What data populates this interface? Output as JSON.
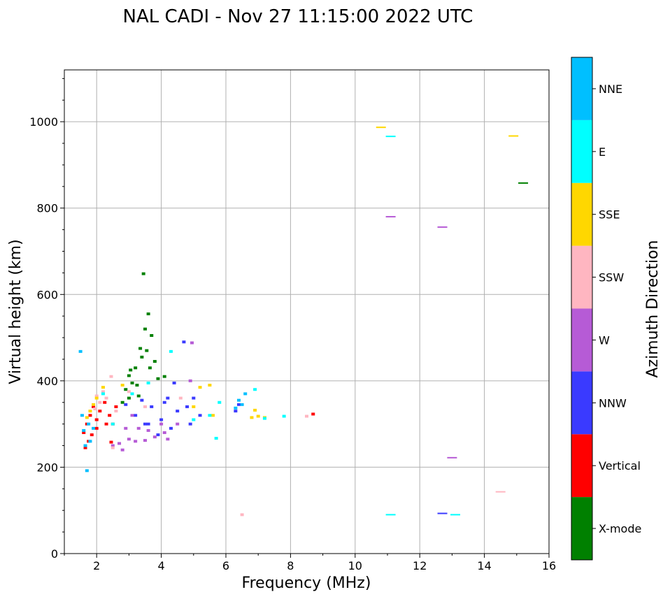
{
  "chart_data": {
    "type": "scatter",
    "title": "NAL CADI - Nov 27 11:15:00 2022 UTC",
    "xlabel": "Frequency (MHz)",
    "ylabel": "Virtual height (km)",
    "xlim": [
      1,
      16
    ],
    "ylim": [
      0,
      1120
    ],
    "xticks": [
      2,
      4,
      6,
      8,
      10,
      12,
      14,
      16
    ],
    "yticks": [
      0,
      200,
      400,
      600,
      800,
      1000
    ],
    "grid": true,
    "colorbar": {
      "label": "Azimuth Direction",
      "categories": [
        {
          "name": "X-mode",
          "color": "#008000"
        },
        {
          "name": "Vertical",
          "color": "#ff0000"
        },
        {
          "name": "NNW",
          "color": "#3a3aff"
        },
        {
          "name": "W",
          "color": "#b65bd6"
        },
        {
          "name": "SSW",
          "color": "#ffb6c1"
        },
        {
          "name": "SSE",
          "color": "#ffd700"
        },
        {
          "name": "E",
          "color": "#00ffff"
        },
        {
          "name": "NNE",
          "color": "#00bfff"
        }
      ]
    },
    "series": [
      {
        "name": "X-mode",
        "points": [
          [
            3.45,
            648
          ],
          [
            3.6,
            555
          ],
          [
            3.2,
            430
          ],
          [
            3.0,
            412
          ],
          [
            3.35,
            475
          ],
          [
            3.1,
            395
          ],
          [
            2.9,
            380
          ],
          [
            3.5,
            520
          ],
          [
            3.7,
            505
          ],
          [
            3.3,
            365
          ],
          [
            3.8,
            445
          ],
          [
            3.9,
            405
          ],
          [
            4.1,
            410
          ],
          [
            3.05,
            425
          ],
          [
            3.25,
            390
          ],
          [
            3.55,
            470
          ],
          [
            3.0,
            360
          ],
          [
            2.8,
            350
          ],
          [
            3.4,
            455
          ],
          [
            3.65,
            430
          ],
          [
            15.2,
            858
          ]
        ]
      },
      {
        "name": "Vertical",
        "points": [
          [
            1.6,
            280
          ],
          [
            1.7,
            300
          ],
          [
            1.8,
            320
          ],
          [
            1.9,
            340
          ],
          [
            2.0,
            310
          ],
          [
            2.1,
            330
          ],
          [
            1.75,
            260
          ],
          [
            2.25,
            350
          ],
          [
            2.4,
            320
          ],
          [
            2.5,
            300
          ],
          [
            1.65,
            245
          ],
          [
            2.45,
            258
          ],
          [
            2.0,
            290
          ],
          [
            2.6,
            340
          ],
          [
            2.3,
            300
          ],
          [
            1.85,
            275
          ],
          [
            8.7,
            323
          ]
        ]
      },
      {
        "name": "NNW",
        "points": [
          [
            3.2,
            320
          ],
          [
            3.5,
            300
          ],
          [
            4.0,
            310
          ],
          [
            4.5,
            330
          ],
          [
            4.7,
            490
          ],
          [
            5.0,
            360
          ],
          [
            5.2,
            320
          ],
          [
            4.8,
            340
          ],
          [
            4.3,
            290
          ],
          [
            3.9,
            275
          ],
          [
            4.2,
            360
          ],
          [
            4.4,
            395
          ],
          [
            3.7,
            340
          ],
          [
            3.4,
            355
          ],
          [
            3.6,
            300
          ],
          [
            2.9,
            345
          ],
          [
            4.1,
            350
          ],
          [
            4.9,
            300
          ],
          [
            6.4,
            345
          ],
          [
            6.3,
            330
          ],
          [
            12.7,
            93
          ]
        ]
      },
      {
        "name": "W",
        "points": [
          [
            2.7,
            255
          ],
          [
            3.0,
            265
          ],
          [
            3.2,
            260
          ],
          [
            3.5,
            262
          ],
          [
            3.8,
            270
          ],
          [
            4.2,
            265
          ],
          [
            4.1,
            280
          ],
          [
            3.6,
            285
          ],
          [
            2.8,
            240
          ],
          [
            2.5,
            250
          ],
          [
            3.3,
            290
          ],
          [
            4.0,
            300
          ],
          [
            4.5,
            300
          ],
          [
            4.9,
            400
          ],
          [
            4.95,
            488
          ],
          [
            3.1,
            320
          ],
          [
            2.9,
            290
          ],
          [
            11.1,
            780
          ],
          [
            12.7,
            756
          ],
          [
            13.0,
            222
          ]
        ]
      },
      {
        "name": "SSW",
        "points": [
          [
            2.3,
            360
          ],
          [
            2.2,
            375
          ],
          [
            2.5,
            245
          ],
          [
            2.6,
            330
          ],
          [
            2.45,
            410
          ],
          [
            2.1,
            350
          ],
          [
            2.0,
            365
          ],
          [
            1.95,
            335
          ],
          [
            3.0,
            375
          ],
          [
            3.5,
            340
          ],
          [
            4.6,
            360
          ],
          [
            6.5,
            90
          ],
          [
            8.5,
            318
          ],
          [
            14.5,
            143
          ]
        ]
      },
      {
        "name": "SSE",
        "points": [
          [
            1.7,
            315
          ],
          [
            1.8,
            330
          ],
          [
            1.9,
            345
          ],
          [
            2.0,
            360
          ],
          [
            2.2,
            385
          ],
          [
            2.8,
            390
          ],
          [
            5.2,
            385
          ],
          [
            5.5,
            390
          ],
          [
            6.8,
            315
          ],
          [
            7.0,
            318
          ],
          [
            7.2,
            315
          ],
          [
            6.9,
            332
          ],
          [
            10.8,
            987
          ],
          [
            14.9,
            967
          ],
          [
            5.6,
            320
          ],
          [
            5.0,
            340
          ]
        ]
      },
      {
        "name": "E",
        "points": [
          [
            2.2,
            370
          ],
          [
            2.5,
            300
          ],
          [
            3.1,
            370
          ],
          [
            3.6,
            395
          ],
          [
            4.3,
            468
          ],
          [
            5.0,
            310
          ],
          [
            5.5,
            320
          ],
          [
            5.7,
            267
          ],
          [
            6.9,
            380
          ],
          [
            7.2,
            313
          ],
          [
            7.8,
            318
          ],
          [
            11.1,
            966
          ],
          [
            11.1,
            90
          ],
          [
            13.1,
            90
          ],
          [
            5.8,
            350
          ]
        ]
      },
      {
        "name": "NNE",
        "points": [
          [
            1.5,
            468
          ],
          [
            1.7,
            192
          ],
          [
            1.65,
            250
          ],
          [
            1.75,
            300
          ],
          [
            1.55,
            320
          ],
          [
            1.8,
            260
          ],
          [
            6.4,
            355
          ],
          [
            6.6,
            370
          ],
          [
            6.5,
            345
          ],
          [
            6.3,
            337
          ],
          [
            1.6,
            285
          ],
          [
            1.9,
            290
          ]
        ]
      }
    ]
  }
}
